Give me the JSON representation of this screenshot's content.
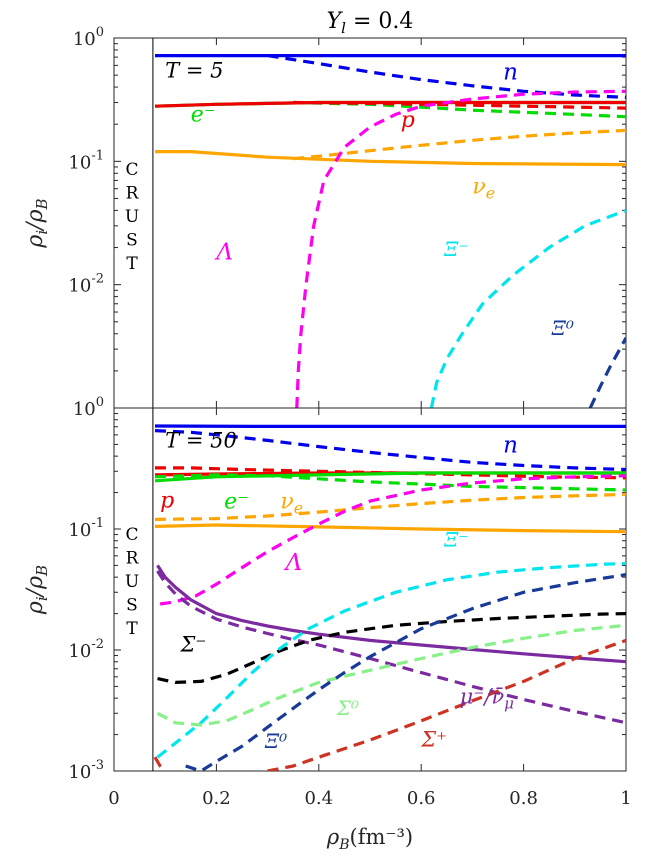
{
  "chart_data": {
    "type": "line",
    "title": "Y_l = 0.4",
    "xlabel": "ρ_B(fm⁻³)",
    "xlim": [
      0,
      1
    ],
    "x_ticks": [
      "0",
      "0.2",
      "0.4",
      "0.6",
      "0.8",
      "1"
    ],
    "crust_boundary": 0.076,
    "crust_text": [
      "C",
      "R",
      "U",
      "S",
      "T"
    ],
    "solid_line_meaning": "nucleonic matter",
    "dashed_line_meaning": "hyperonic matter",
    "colors": {
      "n": "#0000ee",
      "p": "#ee0000",
      "e": "#00dd00",
      "nu_e": "#ffa500",
      "Lambda": "#ff00ee",
      "Xi_minus": "#00e5ee",
      "Xi_zero": "#1a3a99",
      "Sigma_minus": "#000000",
      "Sigma_zero": "#88f088",
      "Sigma_plus": "#cc3322",
      "mu": "#7b2aa0"
    },
    "panels": [
      {
        "id": "T5",
        "label": "T = 5",
        "ylabel": "ρ_i/ρ_B",
        "ylim": [
          0.001,
          1
        ],
        "y_scale": "log",
        "y_ticks": [
          "10^0",
          "10^-1",
          "10^-2"
        ],
        "series": [
          {
            "key": "n",
            "style": "solid",
            "x": [
              0.08,
              0.3,
              0.6,
              1.0
            ],
            "y": [
              0.72,
              0.72,
              0.72,
              0.72
            ]
          },
          {
            "key": "n",
            "style": "dashed",
            "x": [
              0.3,
              0.4,
              0.5,
              0.6,
              0.7,
              0.8,
              0.9,
              1.0
            ],
            "y": [
              0.72,
              0.62,
              0.53,
              0.46,
              0.41,
              0.37,
              0.345,
              0.33
            ]
          },
          {
            "key": "e",
            "style": "solid",
            "x": [
              0.08,
              0.2,
              0.4,
              0.6,
              1.0
            ],
            "y": [
              0.28,
              0.29,
              0.3,
              0.3,
              0.3
            ]
          },
          {
            "key": "e",
            "style": "dashed",
            "x": [
              0.35,
              0.5,
              0.6,
              0.7,
              0.8,
              0.9,
              1.0
            ],
            "y": [
              0.3,
              0.29,
              0.275,
              0.26,
              0.25,
              0.24,
              0.23
            ]
          },
          {
            "key": "p",
            "style": "solid",
            "x": [
              0.08,
              0.2,
              0.4,
              0.6,
              1.0
            ],
            "y": [
              0.28,
              0.29,
              0.3,
              0.3,
              0.3
            ]
          },
          {
            "key": "p",
            "style": "dashed",
            "x": [
              0.35,
              0.5,
              0.6,
              0.7,
              0.8,
              0.9,
              1.0
            ],
            "y": [
              0.3,
              0.295,
              0.29,
              0.285,
              0.28,
              0.275,
              0.27
            ]
          },
          {
            "key": "nu_e",
            "style": "solid",
            "x": [
              0.08,
              0.15,
              0.3,
              0.5,
              0.7,
              1.0
            ],
            "y": [
              0.12,
              0.12,
              0.108,
              0.1,
              0.096,
              0.094
            ]
          },
          {
            "key": "nu_e",
            "style": "dashed",
            "x": [
              0.35,
              0.4,
              0.5,
              0.6,
              0.7,
              0.8,
              0.9,
              1.0
            ],
            "y": [
              0.105,
              0.11,
              0.122,
              0.135,
              0.148,
              0.16,
              0.17,
              0.178
            ]
          },
          {
            "key": "Lambda",
            "style": "dashed",
            "x": [
              0.357,
              0.36,
              0.365,
              0.375,
              0.39,
              0.41,
              0.45,
              0.5,
              0.55,
              0.6,
              0.7,
              0.8,
              0.9,
              1.0
            ],
            "y": [
              0.001,
              0.002,
              0.004,
              0.01,
              0.03,
              0.07,
              0.13,
              0.19,
              0.24,
              0.28,
              0.32,
              0.35,
              0.365,
              0.37
            ]
          },
          {
            "key": "Xi_minus",
            "style": "dashed",
            "x": [
              0.62,
              0.63,
              0.65,
              0.68,
              0.72,
              0.78,
              0.85,
              0.92,
              1.0
            ],
            "y": [
              0.001,
              0.0016,
              0.0025,
              0.004,
              0.007,
              0.012,
              0.02,
              0.03,
              0.04
            ]
          },
          {
            "key": "Xi_zero",
            "style": "dashed",
            "x": [
              0.93,
              0.95,
              0.97,
              1.0
            ],
            "y": [
              0.001,
              0.0015,
              0.0022,
              0.0037
            ]
          }
        ],
        "annotations": [
          {
            "text": "T = 5",
            "x": 0.1,
            "y": 0.48,
            "color": "#000000",
            "size": 21
          },
          {
            "text": "n",
            "x": 0.76,
            "y": 0.46,
            "color": "#0000ee",
            "size": 23
          },
          {
            "text": "e⁻",
            "x": 0.15,
            "y": 0.21,
            "color": "#00dd00",
            "size": 22
          },
          {
            "text": "p",
            "x": 0.56,
            "y": 0.19,
            "color": "#ee0000",
            "size": 22
          },
          {
            "text": "ν_e",
            "x": 0.7,
            "y": 0.055,
            "color": "#ffa500",
            "size": 22
          },
          {
            "text": "Λ",
            "x": 0.2,
            "y": 0.016,
            "color": "#ff00ee",
            "size": 23
          },
          {
            "text": "Ξ⁻",
            "x": 0.645,
            "y": 0.017,
            "color": "#00e5ee",
            "size": 20
          },
          {
            "text": "Ξ⁰",
            "x": 0.855,
            "y": 0.0039,
            "color": "#1a3a99",
            "size": 20
          }
        ]
      },
      {
        "id": "T50",
        "label": "T = 50",
        "ylabel": "ρ_i/ρ_B",
        "ylim": [
          0.001,
          1
        ],
        "y_scale": "log",
        "y_ticks": [
          "10^0",
          "10^-1",
          "10^-2",
          "10^-3"
        ],
        "series": [
          {
            "key": "n",
            "style": "solid",
            "x": [
              0.08,
              0.3,
              0.6,
              1.0
            ],
            "y": [
              0.71,
              0.705,
              0.705,
              0.705
            ]
          },
          {
            "key": "n",
            "style": "dashed",
            "x": [
              0.08,
              0.15,
              0.2,
              0.3,
              0.4,
              0.5,
              0.6,
              0.7,
              0.8,
              0.9,
              1.0
            ],
            "y": [
              0.65,
              0.63,
              0.6,
              0.54,
              0.48,
              0.43,
              0.39,
              0.355,
              0.335,
              0.32,
              0.31
            ]
          },
          {
            "key": "p",
            "style": "solid",
            "x": [
              0.08,
              0.2,
              0.4,
              0.6,
              1.0
            ],
            "y": [
              0.28,
              0.285,
              0.29,
              0.29,
              0.29
            ]
          },
          {
            "key": "p",
            "style": "dashed",
            "x": [
              0.08,
              0.15,
              0.25,
              0.4,
              0.55,
              0.7,
              0.85,
              1.0
            ],
            "y": [
              0.32,
              0.32,
              0.31,
              0.3,
              0.29,
              0.28,
              0.27,
              0.265
            ]
          },
          {
            "key": "e",
            "style": "solid",
            "x": [
              0.08,
              0.2,
              0.4,
              0.6,
              1.0
            ],
            "y": [
              0.25,
              0.27,
              0.28,
              0.29,
              0.29
            ]
          },
          {
            "key": "e",
            "style": "dashed",
            "x": [
              0.08,
              0.2,
              0.3,
              0.4,
              0.5,
              0.6,
              0.7,
              0.8,
              0.9,
              1.0
            ],
            "y": [
              0.27,
              0.28,
              0.275,
              0.26,
              0.245,
              0.235,
              0.225,
              0.22,
              0.215,
              0.21
            ]
          },
          {
            "key": "nu_e",
            "style": "solid",
            "x": [
              0.08,
              0.2,
              0.4,
              0.6,
              0.8,
              1.0
            ],
            "y": [
              0.105,
              0.108,
              0.104,
              0.1,
              0.097,
              0.095
            ]
          },
          {
            "key": "nu_e",
            "style": "dashed",
            "x": [
              0.08,
              0.2,
              0.3,
              0.4,
              0.5,
              0.6,
              0.7,
              0.8,
              0.9,
              1.0
            ],
            "y": [
              0.12,
              0.122,
              0.128,
              0.138,
              0.15,
              0.162,
              0.173,
              0.182,
              0.188,
              0.193
            ]
          },
          {
            "key": "Lambda",
            "style": "dashed",
            "x": [
              0.09,
              0.12,
              0.16,
              0.2,
              0.25,
              0.3,
              0.35,
              0.4,
              0.45,
              0.5,
              0.6,
              0.7,
              0.8,
              0.9,
              1.0
            ],
            "y": [
              0.024,
              0.025,
              0.028,
              0.035,
              0.048,
              0.065,
              0.085,
              0.11,
              0.14,
              0.17,
              0.21,
              0.24,
              0.26,
              0.27,
              0.275
            ]
          },
          {
            "key": "mu",
            "style": "solid",
            "x": [
              0.085,
              0.1,
              0.12,
              0.15,
              0.2,
              0.25,
              0.3,
              0.35,
              0.4,
              0.5,
              0.6,
              0.7,
              0.8,
              0.9,
              1.0
            ],
            "y": [
              0.05,
              0.04,
              0.033,
              0.026,
              0.02,
              0.0175,
              0.0158,
              0.0145,
              0.0135,
              0.012,
              0.011,
              0.0101,
              0.0093,
              0.0086,
              0.008
            ]
          },
          {
            "key": "mu",
            "style": "dashed",
            "x": [
              0.085,
              0.1,
              0.12,
              0.15,
              0.2,
              0.25,
              0.3,
              0.35,
              0.4,
              0.5,
              0.6,
              0.7,
              0.8,
              0.9,
              1.0
            ],
            "y": [
              0.045,
              0.036,
              0.029,
              0.023,
              0.018,
              0.0155,
              0.0137,
              0.0122,
              0.011,
              0.0085,
              0.0065,
              0.005,
              0.0039,
              0.0031,
              0.0025
            ]
          },
          {
            "key": "Sigma_minus",
            "style": "dashed",
            "x": [
              0.085,
              0.12,
              0.17,
              0.22,
              0.27,
              0.32,
              0.38,
              0.45,
              0.55,
              0.65,
              0.75,
              0.85,
              0.95,
              1.0
            ],
            "y": [
              0.0058,
              0.0054,
              0.0055,
              0.0063,
              0.0078,
              0.0097,
              0.012,
              0.014,
              0.016,
              0.0172,
              0.0182,
              0.019,
              0.0198,
              0.02
            ]
          },
          {
            "key": "Xi_minus",
            "style": "dashed",
            "x": [
              0.085,
              0.12,
              0.17,
              0.22,
              0.27,
              0.32,
              0.38,
              0.45,
              0.55,
              0.65,
              0.75,
              0.85,
              0.95,
              1.0
            ],
            "y": [
              0.0013,
              0.0017,
              0.0025,
              0.004,
              0.0065,
              0.01,
              0.015,
              0.021,
              0.03,
              0.038,
              0.044,
              0.048,
              0.051,
              0.052
            ]
          },
          {
            "key": "Sigma_zero",
            "style": "dashed",
            "x": [
              0.085,
              0.12,
              0.17,
              0.22,
              0.27,
              0.32,
              0.4,
              0.5,
              0.6,
              0.7,
              0.8,
              0.9,
              1.0
            ],
            "y": [
              0.003,
              0.0025,
              0.0024,
              0.0026,
              0.0032,
              0.004,
              0.0054,
              0.0068,
              0.0085,
              0.0105,
              0.0125,
              0.0145,
              0.016
            ]
          },
          {
            "key": "Xi_zero",
            "style": "dashed",
            "x": [
              0.14,
              0.17,
              0.2,
              0.25,
              0.3,
              0.35,
              0.4,
              0.45,
              0.5,
              0.55,
              0.6,
              0.7,
              0.8,
              0.9,
              1.0
            ],
            "y": [
              0.0011,
              0.001,
              0.0012,
              0.0016,
              0.0023,
              0.0033,
              0.0047,
              0.0065,
              0.0088,
              0.0115,
              0.015,
              0.022,
              0.03,
              0.036,
              0.042
            ]
          },
          {
            "key": "Sigma_plus",
            "style": "dashed",
            "x": [
              0.08,
              0.09,
              0.1
            ],
            "y": [
              0.0013,
              0.0011,
              0.001
            ]
          },
          {
            "key": "Sigma_plus",
            "style": "dashed",
            "x": [
              0.3,
              0.35,
              0.4,
              0.5,
              0.6,
              0.7,
              0.8,
              0.9,
              1.0
            ],
            "y": [
              0.001,
              0.0011,
              0.0013,
              0.0018,
              0.0026,
              0.0038,
              0.0055,
              0.0085,
              0.012
            ]
          }
        ],
        "annotations": [
          {
            "text": "T = 50",
            "x": 0.1,
            "y": 0.47,
            "color": "#000000",
            "size": 21
          },
          {
            "text": "n",
            "x": 0.76,
            "y": 0.43,
            "color": "#0000ee",
            "size": 23
          },
          {
            "text": "p",
            "x": 0.09,
            "y": 0.15,
            "color": "#ee0000",
            "size": 22
          },
          {
            "text": "e⁻",
            "x": 0.215,
            "y": 0.148,
            "color": "#00dd00",
            "size": 22
          },
          {
            "text": "ν_e",
            "x": 0.325,
            "y": 0.148,
            "color": "#ffa500",
            "size": 22
          },
          {
            "text": "Λ",
            "x": 0.335,
            "y": 0.046,
            "color": "#ff00ee",
            "size": 23
          },
          {
            "text": "Ξ⁻",
            "x": 0.645,
            "y": 0.072,
            "color": "#00e5ee",
            "size": 20
          },
          {
            "text": "Σ⁻",
            "x": 0.13,
            "y": 0.0097,
            "color": "#000000",
            "size": 21
          },
          {
            "text": "Σ⁰",
            "x": 0.435,
            "y": 0.0029,
            "color": "#88f088",
            "size": 20
          },
          {
            "text": "μ⁻/ν̄_μ",
            "x": 0.675,
            "y": 0.0036,
            "color": "#7b2aa0",
            "size": 21
          },
          {
            "text": "Ξ⁰",
            "x": 0.295,
            "y": 0.00155,
            "color": "#1a3a99",
            "size": 20
          },
          {
            "text": "Σ⁺",
            "x": 0.6,
            "y": 0.0016,
            "color": "#cc3322",
            "size": 21
          }
        ]
      }
    ]
  }
}
